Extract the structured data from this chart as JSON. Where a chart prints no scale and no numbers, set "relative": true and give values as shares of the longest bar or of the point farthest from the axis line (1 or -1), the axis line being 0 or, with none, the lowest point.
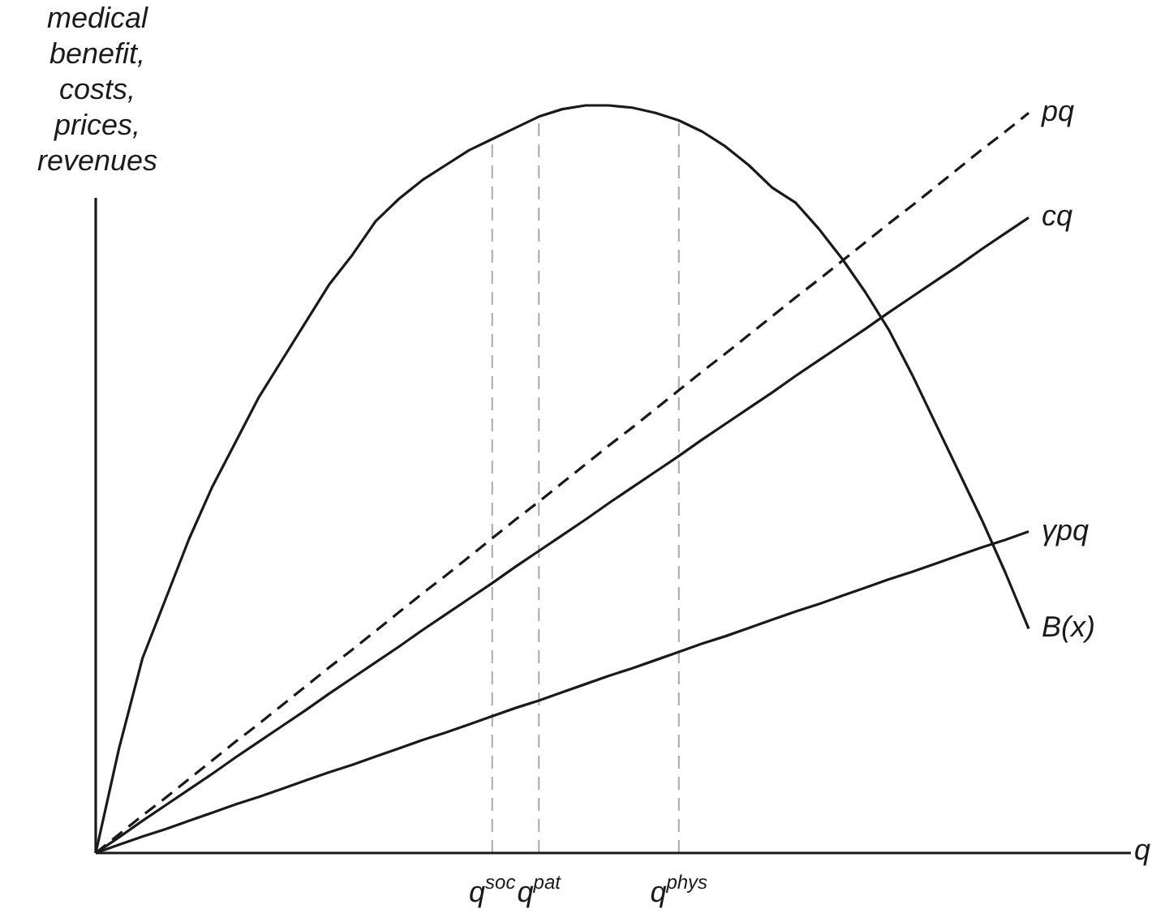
{
  "chart_data": {
    "type": "line",
    "relative": true,
    "xlabel": "q",
    "ylabel": "medical\nbenefit,\ncosts,\nprices,\nrevenues",
    "marker": "none",
    "categories": [
      null,
      null,
      null,
      null,
      null,
      null,
      null,
      null,
      null,
      null,
      null,
      null,
      null,
      null,
      null,
      null,
      null,
      "q$^{soc}$",
      null,
      "q$^{pat}$",
      null,
      null,
      null,
      null,
      null,
      "q$^{phys}$",
      null,
      null,
      null,
      null,
      null,
      null,
      null,
      null,
      null,
      null,
      null,
      null,
      null,
      null,
      null
    ],
    "series": [
      {
        "name": "B(x)",
        "color": "#1a1a1a",
        "values": [
          0,
          0.14,
          0.26,
          0.34,
          0.42,
          0.49,
          0.55,
          0.61,
          0.66,
          0.71,
          0.76,
          0.8,
          0.845,
          0.875,
          0.9,
          0.92,
          0.94,
          0.955,
          0.97,
          0.985,
          0.995,
          1.0,
          1.0,
          0.997,
          0.99,
          0.98,
          0.965,
          0.945,
          0.92,
          0.89,
          0.87,
          0.835,
          0.795,
          0.75,
          0.7,
          0.64,
          0.575,
          0.51,
          0.445,
          0.375,
          0.3
        ]
      },
      {
        "name": "pq",
        "color": "#1a1a1a",
        "line_style": "dashed",
        "values": [
          0,
          0.025,
          0.05,
          0.074,
          0.099,
          0.124,
          0.149,
          0.173,
          0.198,
          0.223,
          0.248,
          0.272,
          0.297,
          0.322,
          0.347,
          0.371,
          0.396,
          0.421,
          0.446,
          0.47,
          0.495,
          0.52,
          0.545,
          0.569,
          0.594,
          0.619,
          0.644,
          0.668,
          0.693,
          0.718,
          0.743,
          0.767,
          0.792,
          0.817,
          0.842,
          0.866,
          0.891,
          0.916,
          0.941,
          0.965,
          0.99
        ]
      },
      {
        "name": "cq",
        "color": "#1a1a1a",
        "values": [
          0,
          0.021,
          0.043,
          0.064,
          0.085,
          0.106,
          0.128,
          0.149,
          0.17,
          0.191,
          0.213,
          0.234,
          0.255,
          0.276,
          0.298,
          0.319,
          0.34,
          0.361,
          0.383,
          0.404,
          0.425,
          0.446,
          0.468,
          0.489,
          0.51,
          0.531,
          0.553,
          0.574,
          0.595,
          0.616,
          0.638,
          0.659,
          0.68,
          0.701,
          0.723,
          0.744,
          0.765,
          0.786,
          0.808,
          0.829,
          0.85
        ]
      },
      {
        "name": "γpq",
        "color": "#1a1a1a",
        "values": [
          0,
          0.011,
          0.022,
          0.032,
          0.043,
          0.054,
          0.065,
          0.075,
          0.086,
          0.097,
          0.108,
          0.118,
          0.129,
          0.14,
          0.151,
          0.161,
          0.172,
          0.183,
          0.194,
          0.204,
          0.215,
          0.226,
          0.237,
          0.247,
          0.258,
          0.269,
          0.28,
          0.29,
          0.301,
          0.312,
          0.323,
          0.333,
          0.344,
          0.355,
          0.366,
          0.376,
          0.387,
          0.398,
          0.409,
          0.419,
          0.43
        ]
      }
    ],
    "ref_lines": [
      {
        "axis": "x",
        "value": "q$^{soc}$",
        "color": "#aaaaaa",
        "line_style": "dashed"
      },
      {
        "axis": "x",
        "value": "q$^{pat}$",
        "color": "#aaaaaa",
        "line_style": "dashed"
      },
      {
        "axis": "x",
        "value": "q$^{phys}$",
        "color": "#aaaaaa",
        "line_style": "dashed"
      }
    ]
  }
}
